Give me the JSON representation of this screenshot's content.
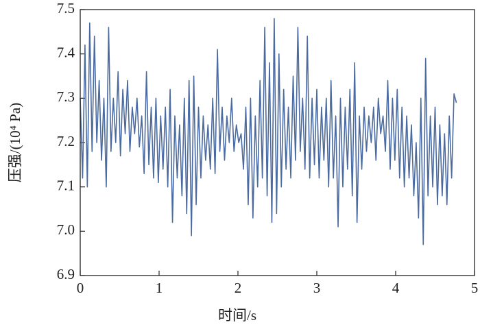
{
  "chart_data": {
    "type": "line",
    "x_label": "时间/s",
    "y_label": "压强/(10⁴ Pa)",
    "xlim": [
      0,
      5
    ],
    "xticks": [
      0,
      1,
      2,
      3,
      4,
      5
    ],
    "ylim": [
      6.9,
      7.5
    ],
    "yticks": [
      6.9,
      {
        "value": 7,
        "label": "7.0"
      },
      7.1,
      7.2,
      7.3,
      7.4,
      7.5
    ],
    "x": [
      0.0,
      0.03,
      0.06,
      0.09,
      0.12,
      0.15,
      0.18,
      0.21,
      0.24,
      0.27,
      0.3,
      0.33,
      0.36,
      0.39,
      0.42,
      0.45,
      0.48,
      0.51,
      0.54,
      0.57,
      0.6,
      0.63,
      0.66,
      0.69,
      0.72,
      0.75,
      0.78,
      0.81,
      0.84,
      0.87,
      0.9,
      0.93,
      0.96,
      0.99,
      1.02,
      1.05,
      1.08,
      1.11,
      1.14,
      1.17,
      1.2,
      1.23,
      1.26,
      1.29,
      1.32,
      1.35,
      1.38,
      1.41,
      1.44,
      1.47,
      1.5,
      1.53,
      1.56,
      1.59,
      1.62,
      1.65,
      1.68,
      1.71,
      1.74,
      1.77,
      1.8,
      1.83,
      1.86,
      1.89,
      1.92,
      1.95,
      1.98,
      2.01,
      2.04,
      2.07,
      2.1,
      2.13,
      2.16,
      2.19,
      2.22,
      2.25,
      2.28,
      2.31,
      2.34,
      2.37,
      2.4,
      2.43,
      2.46,
      2.49,
      2.52,
      2.55,
      2.58,
      2.61,
      2.64,
      2.67,
      2.7,
      2.73,
      2.76,
      2.79,
      2.82,
      2.85,
      2.88,
      2.91,
      2.94,
      2.97,
      3.0,
      3.03,
      3.06,
      3.09,
      3.12,
      3.15,
      3.18,
      3.21,
      3.24,
      3.27,
      3.3,
      3.33,
      3.36,
      3.39,
      3.42,
      3.45,
      3.48,
      3.51,
      3.54,
      3.57,
      3.6,
      3.63,
      3.66,
      3.69,
      3.72,
      3.75,
      3.78,
      3.81,
      3.84,
      3.87,
      3.9,
      3.93,
      3.96,
      3.99,
      4.02,
      4.05,
      4.08,
      4.11,
      4.14,
      4.17,
      4.2,
      4.23,
      4.26,
      4.29,
      4.32,
      4.35,
      4.38,
      4.41,
      4.44,
      4.47,
      4.5,
      4.53,
      4.56,
      4.59,
      4.62,
      4.65,
      4.68,
      4.71,
      4.74,
      4.77
    ],
    "series": [
      {
        "color": "#4a6aa0",
        "values": [
          7.3,
          7.12,
          7.42,
          7.1,
          7.47,
          7.18,
          7.44,
          7.2,
          7.34,
          7.16,
          7.3,
          7.1,
          7.46,
          7.18,
          7.3,
          7.2,
          7.36,
          7.17,
          7.32,
          7.22,
          7.34,
          7.18,
          7.28,
          7.22,
          7.3,
          7.19,
          7.26,
          7.13,
          7.36,
          7.15,
          7.28,
          7.12,
          7.3,
          7.11,
          7.26,
          7.14,
          7.28,
          7.1,
          7.32,
          7.02,
          7.26,
          7.12,
          7.24,
          7.08,
          7.3,
          7.04,
          7.34,
          6.99,
          7.35,
          7.06,
          7.28,
          7.12,
          7.26,
          7.16,
          7.24,
          7.14,
          7.3,
          7.13,
          7.41,
          7.18,
          7.28,
          7.16,
          7.26,
          7.2,
          7.3,
          7.18,
          7.24,
          7.2,
          7.22,
          7.14,
          7.28,
          7.06,
          7.3,
          7.03,
          7.26,
          7.1,
          7.34,
          7.12,
          7.46,
          7.08,
          7.38,
          7.02,
          7.48,
          7.04,
          7.4,
          7.1,
          7.32,
          7.14,
          7.28,
          7.12,
          7.35,
          7.16,
          7.46,
          7.18,
          7.3,
          7.14,
          7.44,
          7.12,
          7.3,
          7.15,
          7.32,
          7.12,
          7.28,
          7.16,
          7.3,
          7.1,
          7.34,
          7.12,
          7.26,
          7.01,
          7.3,
          7.1,
          7.28,
          7.14,
          7.32,
          7.08,
          7.38,
          7.02,
          7.26,
          7.14,
          7.28,
          7.18,
          7.26,
          7.2,
          7.28,
          7.16,
          7.3,
          7.22,
          7.26,
          7.18,
          7.34,
          7.14,
          7.3,
          7.16,
          7.32,
          7.12,
          7.28,
          7.1,
          7.26,
          7.12,
          7.24,
          7.08,
          7.2,
          7.03,
          7.3,
          6.97,
          7.39,
          7.08,
          7.26,
          7.1,
          7.28,
          7.06,
          7.24,
          7.08,
          7.22,
          7.06,
          7.26,
          7.12,
          7.31,
          7.29
        ]
      }
    ]
  }
}
